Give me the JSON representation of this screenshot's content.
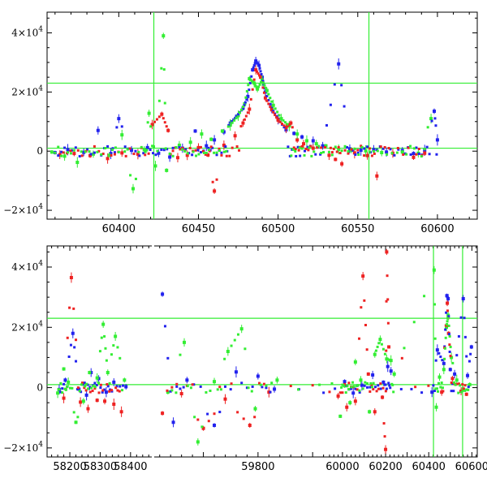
{
  "chart_data": [
    {
      "type": "scatter",
      "title": "",
      "xlabel": "",
      "ylabel": "",
      "xlim": [
        60355,
        60625
      ],
      "ylim": [
        -23000,
        47000
      ],
      "grid": false,
      "x_ticks": [
        60400,
        60450,
        60500,
        60550,
        60600
      ],
      "x_tick_labels": [
        "60400",
        "60450",
        "60500",
        "60550",
        "60600"
      ],
      "y_ticks": [
        -20000,
        0,
        20000,
        40000
      ],
      "y_tick_labels": [
        {
          "mant": "−2×10",
          "exp": "4"
        },
        {
          "mant": "0",
          "exp": ""
        },
        {
          "mant": "2×10",
          "exp": "4"
        },
        {
          "mant": "4×10",
          "exp": "4"
        }
      ],
      "reference_lines": {
        "vertical": [
          60422,
          60557
        ],
        "horizontal": [
          1000,
          23000
        ]
      },
      "colors": {
        "line": "#33ee33",
        "series": [
          "#2222ee",
          "#ee2222",
          "#33ee33"
        ]
      },
      "series": [
        {
          "name": "blue",
          "color": "#2222ee",
          "points": [
            [
              60360,
              -500
            ],
            [
              60368,
              500
            ],
            [
              60378,
              -400
            ],
            [
              60387,
              7000
            ],
            [
              60395,
              -800
            ],
            [
              60400,
              11000
            ],
            [
              60408,
              300
            ],
            [
              60418,
              1200
            ],
            [
              60425,
              -700
            ],
            [
              60432,
              -2000
            ],
            [
              60440,
              1000
            ],
            [
              60448,
              6800
            ],
            [
              60455,
              1800
            ],
            [
              60460,
              3800
            ],
            [
              60466,
              6500
            ],
            [
              60470,
              9500
            ],
            [
              60474,
              11800
            ],
            [
              60478,
              14500
            ],
            [
              60481,
              18500
            ],
            [
              60484,
              27500
            ],
            [
              60486,
              30500
            ],
            [
              60488,
              29000
            ],
            [
              60490,
              25000
            ],
            [
              60492,
              20000
            ],
            [
              60496,
              14500
            ],
            [
              60500,
              10800
            ],
            [
              60505,
              7200
            ],
            [
              60510,
              6000
            ],
            [
              60515,
              4800
            ],
            [
              60522,
              3500
            ],
            [
              60528,
              1800
            ],
            [
              60538,
              29500
            ],
            [
              60545,
              800
            ],
            [
              60552,
              300
            ],
            [
              60560,
              500
            ],
            [
              60568,
              -300
            ],
            [
              60578,
              200
            ],
            [
              60585,
              -800
            ],
            [
              60592,
              300
            ],
            [
              60598,
              13500
            ],
            [
              60600,
              3800
            ]
          ]
        },
        {
          "name": "red",
          "color": "#ee2222",
          "points": [
            [
              60363,
              -1200
            ],
            [
              60372,
              -800
            ],
            [
              60382,
              -1500
            ],
            [
              60393,
              -2500
            ],
            [
              60402,
              -600
            ],
            [
              60412,
              -1000
            ],
            [
              60421,
              9000
            ],
            [
              60427,
              12500
            ],
            [
              60431,
              7000
            ],
            [
              60437,
              -2200
            ],
            [
              60443,
              -1400
            ],
            [
              60450,
              1200
            ],
            [
              60456,
              -1300
            ],
            [
              60460,
              -13500
            ],
            [
              60466,
              2000
            ],
            [
              60473,
              5200
            ],
            [
              60478,
              9500
            ],
            [
              60482,
              14200
            ],
            [
              60486,
              27500
            ],
            [
              60489,
              25000
            ],
            [
              60492,
              18000
            ],
            [
              60496,
              14000
            ],
            [
              60500,
              10500
            ],
            [
              60505,
              8000
            ],
            [
              60508,
              9500
            ],
            [
              60512,
              3800
            ],
            [
              60516,
              2500
            ],
            [
              60522,
              1000
            ],
            [
              60532,
              -1400
            ],
            [
              60536,
              -2800
            ],
            [
              60540,
              -4300
            ],
            [
              60548,
              -600
            ],
            [
              60556,
              -1500
            ],
            [
              60562,
              -8400
            ],
            [
              60572,
              -700
            ],
            [
              60585,
              -2100
            ],
            [
              60592,
              -700
            ]
          ]
        },
        {
          "name": "green",
          "color": "#33ee33",
          "points": [
            [
              60358,
              -300
            ],
            [
              60366,
              -1700
            ],
            [
              60374,
              -3800
            ],
            [
              60384,
              -1000
            ],
            [
              60394,
              -1400
            ],
            [
              60402,
              5500
            ],
            [
              60409,
              -12700
            ],
            [
              60416,
              500
            ],
            [
              60419,
              12800
            ],
            [
              60423,
              -5000
            ],
            [
              60428,
              39000
            ],
            [
              60430,
              -6500
            ],
            [
              60438,
              2000
            ],
            [
              60445,
              3000
            ],
            [
              60452,
              5800
            ],
            [
              60458,
              4000
            ],
            [
              60465,
              6800
            ],
            [
              60470,
              8800
            ],
            [
              60475,
              12000
            ],
            [
              60479,
              16000
            ],
            [
              60482,
              24500
            ],
            [
              60485,
              23000
            ],
            [
              60487,
              21000
            ],
            [
              60490,
              24000
            ],
            [
              60493,
              20500
            ],
            [
              60497,
              15500
            ],
            [
              60502,
              11000
            ],
            [
              60507,
              8500
            ],
            [
              60512,
              5800
            ],
            [
              60518,
              3500
            ],
            [
              60524,
              2500
            ],
            [
              60530,
              1800
            ],
            [
              60538,
              600
            ],
            [
              60546,
              300
            ],
            [
              60555,
              100
            ],
            [
              60565,
              -500
            ],
            [
              60578,
              -300
            ],
            [
              60588,
              -700
            ],
            [
              60596,
              11000
            ]
          ]
        }
      ]
    },
    {
      "type": "scatter",
      "title": "",
      "xlabel": "",
      "ylabel": "",
      "ylim": [
        -23000,
        47000
      ],
      "grid": false,
      "broken_axis": true,
      "segments": [
        {
          "xlim": [
            58125,
            58470
          ]
        },
        {
          "xlim": [
            59610,
            59925
          ]
        },
        {
          "xlim": [
            59925,
            60625
          ]
        }
      ],
      "x_ticks": [
        58200,
        58300,
        58400,
        59800,
        60000,
        60200,
        60400,
        60600
      ],
      "x_tick_labels": [
        "58200",
        "58300",
        "58400",
        "59800",
        "60000",
        "60200",
        "60400",
        "60600"
      ],
      "y_ticks": [
        -20000,
        0,
        20000,
        40000
      ],
      "y_tick_labels": [
        {
          "mant": "−2×10",
          "exp": "4"
        },
        {
          "mant": "0",
          "exp": ""
        },
        {
          "mant": "2×10",
          "exp": "4"
        },
        {
          "mant": "4×10",
          "exp": "4"
        }
      ],
      "reference_lines": {
        "vertical": [
          60422,
          60557
        ],
        "horizontal": [
          1000,
          23000
        ]
      },
      "colors": {
        "line": "#33ee33",
        "series": [
          "#2222ee",
          "#ee2222",
          "#33ee33"
        ]
      },
      "series": [
        {
          "name": "blue",
          "color": "#2222ee",
          "points": [
            [
              58165,
              -600
            ],
            [
              58185,
              2500
            ],
            [
              58210,
              18000
            ],
            [
              58230,
              -500
            ],
            [
              58255,
              -2500
            ],
            [
              58270,
              5000
            ],
            [
              58295,
              3000
            ],
            [
              58320,
              -1500
            ],
            [
              58345,
              1800
            ],
            [
              58385,
              300
            ],
            [
              59625,
              31000
            ],
            [
              59645,
              -11500
            ],
            [
              59670,
              2500
            ],
            [
              59720,
              -12500
            ],
            [
              59760,
              5200
            ],
            [
              59800,
              3800
            ],
            [
              59830,
              -500
            ],
            [
              60010,
              2000
            ],
            [
              60050,
              -1800
            ],
            [
              60090,
              800
            ],
            [
              60140,
              4200
            ],
            [
              60190,
              1800
            ],
            [
              60210,
              7000
            ],
            [
              60225,
              5500
            ],
            [
              60415,
              -1500
            ],
            [
              60440,
              12500
            ],
            [
              60470,
              8000
            ],
            [
              60484,
              30500
            ],
            [
              60490,
              29500
            ],
            [
              60500,
              6000
            ],
            [
              60520,
              4500
            ],
            [
              60560,
              29500
            ],
            [
              60580,
              4000
            ],
            [
              60598,
              13500
            ]
          ]
        },
        {
          "name": "red",
          "color": "#ee2222",
          "points": [
            [
              58180,
              -3500
            ],
            [
              58205,
              36500
            ],
            [
              58235,
              -4800
            ],
            [
              58260,
              -7000
            ],
            [
              58290,
              -4200
            ],
            [
              58315,
              -4500
            ],
            [
              58345,
              -5500
            ],
            [
              58370,
              -8000
            ],
            [
              59625,
              -8500
            ],
            [
              59660,
              -2000
            ],
            [
              59700,
              -13500
            ],
            [
              59740,
              -3800
            ],
            [
              59785,
              -12500
            ],
            [
              59820,
              -1500
            ],
            [
              59980,
              -2800
            ],
            [
              60020,
              -6500
            ],
            [
              60060,
              -4500
            ],
            [
              60095,
              37000
            ],
            [
              60120,
              4500
            ],
            [
              60150,
              -8000
            ],
            [
              60185,
              -3200
            ],
            [
              60200,
              -20500
            ],
            [
              60205,
              45000
            ],
            [
              60215,
              13500
            ],
            [
              60460,
              -1500
            ],
            [
              60486,
              28000
            ],
            [
              60492,
              18000
            ],
            [
              60510,
              3000
            ],
            [
              60550,
              -1200
            ],
            [
              60575,
              -2200
            ]
          ]
        },
        {
          "name": "green",
          "color": "#33ee33",
          "points": [
            [
              58160,
              -1800
            ],
            [
              58180,
              6200
            ],
            [
              58195,
              1800
            ],
            [
              58220,
              -11500
            ],
            [
              58245,
              -4500
            ],
            [
              58265,
              5000
            ],
            [
              58290,
              3200
            ],
            [
              58310,
              21000
            ],
            [
              58325,
              5000
            ],
            [
              58350,
              17000
            ],
            [
              58380,
              2500
            ],
            [
              59635,
              -1500
            ],
            [
              59665,
              15000
            ],
            [
              59690,
              -18000
            ],
            [
              59720,
              2000
            ],
            [
              59745,
              12000
            ],
            [
              59770,
              19500
            ],
            [
              59795,
              -7000
            ],
            [
              59835,
              2500
            ],
            [
              59990,
              -9500
            ],
            [
              60010,
              600
            ],
            [
              60035,
              -5000
            ],
            [
              60060,
              8500
            ],
            [
              60085,
              2500
            ],
            [
              60125,
              -8000
            ],
            [
              60150,
              11000
            ],
            [
              60175,
              16000
            ],
            [
              60205,
              9500
            ],
            [
              60225,
              9000
            ],
            [
              60240,
              4500
            ],
            [
              60425,
              39000
            ],
            [
              60435,
              -6500
            ],
            [
              60450,
              3500
            ],
            [
              60470,
              6000
            ],
            [
              60482,
              20000
            ],
            [
              60490,
              24000
            ],
            [
              60505,
              10000
            ],
            [
              60530,
              2500
            ],
            [
              60560,
              -500
            ],
            [
              60590,
              1000
            ]
          ]
        }
      ]
    }
  ]
}
